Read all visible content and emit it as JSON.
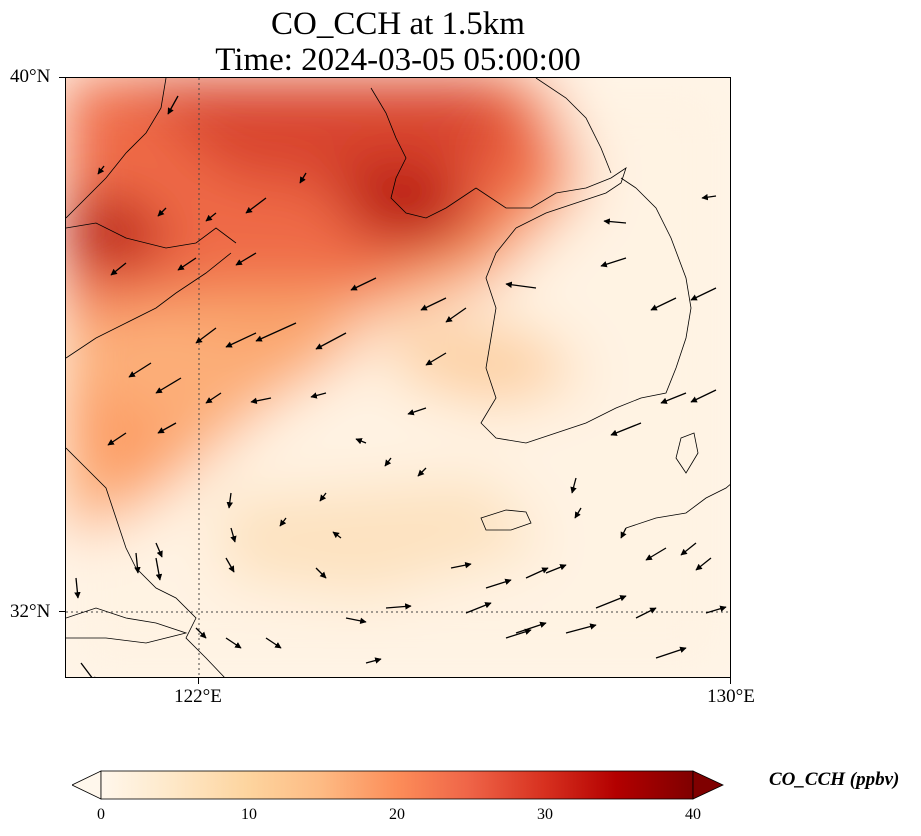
{
  "title": {
    "line1": "CO_CCH at 1.5km",
    "line2": "Time: 2024-03-05 05:00:00"
  },
  "map": {
    "lon_range": [
      120.2,
      130.0
    ],
    "lat_range": [
      31.0,
      40.0
    ],
    "lat_ticks": [
      {
        "value": 40,
        "label": "40°N"
      },
      {
        "value": 32,
        "label": "32°N"
      }
    ],
    "lon_ticks": [
      {
        "value": 122,
        "label": "122°E"
      },
      {
        "value": 130,
        "label": "130°E"
      }
    ],
    "gridlines": {
      "lon": [
        122
      ],
      "lat": [
        32
      ]
    }
  },
  "colorbar": {
    "label": "CO_CCH (ppbv)",
    "min": 0,
    "max": 40,
    "ticks": [
      {
        "value": 0,
        "label": "0"
      },
      {
        "value": 10,
        "label": "10"
      },
      {
        "value": 20,
        "label": "20"
      },
      {
        "value": 30,
        "label": "30"
      },
      {
        "value": 40,
        "label": "40"
      }
    ],
    "colormap": "OrRd-like",
    "colors": [
      "#fff7ec",
      "#fee8c8",
      "#fdd49e",
      "#fdbb84",
      "#fc8d59",
      "#ef6548",
      "#d7301f",
      "#b30000",
      "#7f0000"
    ]
  },
  "chart_data": {
    "type": "heatmap",
    "variable": "CO_CCH",
    "units": "ppbv",
    "field_samples": [
      {
        "lon": 121.0,
        "lat": 37.5,
        "value": 34
      },
      {
        "lon": 122.5,
        "lat": 39.5,
        "value": 30
      },
      {
        "lon": 123.5,
        "lat": 39.6,
        "value": 29
      },
      {
        "lon": 125.5,
        "lat": 38.5,
        "value": 33
      },
      {
        "lon": 124.5,
        "lat": 37.5,
        "value": 24
      },
      {
        "lon": 122.0,
        "lat": 36.5,
        "value": 18
      },
      {
        "lon": 121.0,
        "lat": 34.5,
        "value": 17
      },
      {
        "lon": 123.5,
        "lat": 34.5,
        "value": 12
      },
      {
        "lon": 126.5,
        "lat": 36.0,
        "value": 7
      },
      {
        "lon": 128.5,
        "lat": 36.0,
        "value": 3
      },
      {
        "lon": 125.0,
        "lat": 32.5,
        "value": 9
      },
      {
        "lon": 128.5,
        "lat": 32.0,
        "value": 3
      }
    ]
  }
}
